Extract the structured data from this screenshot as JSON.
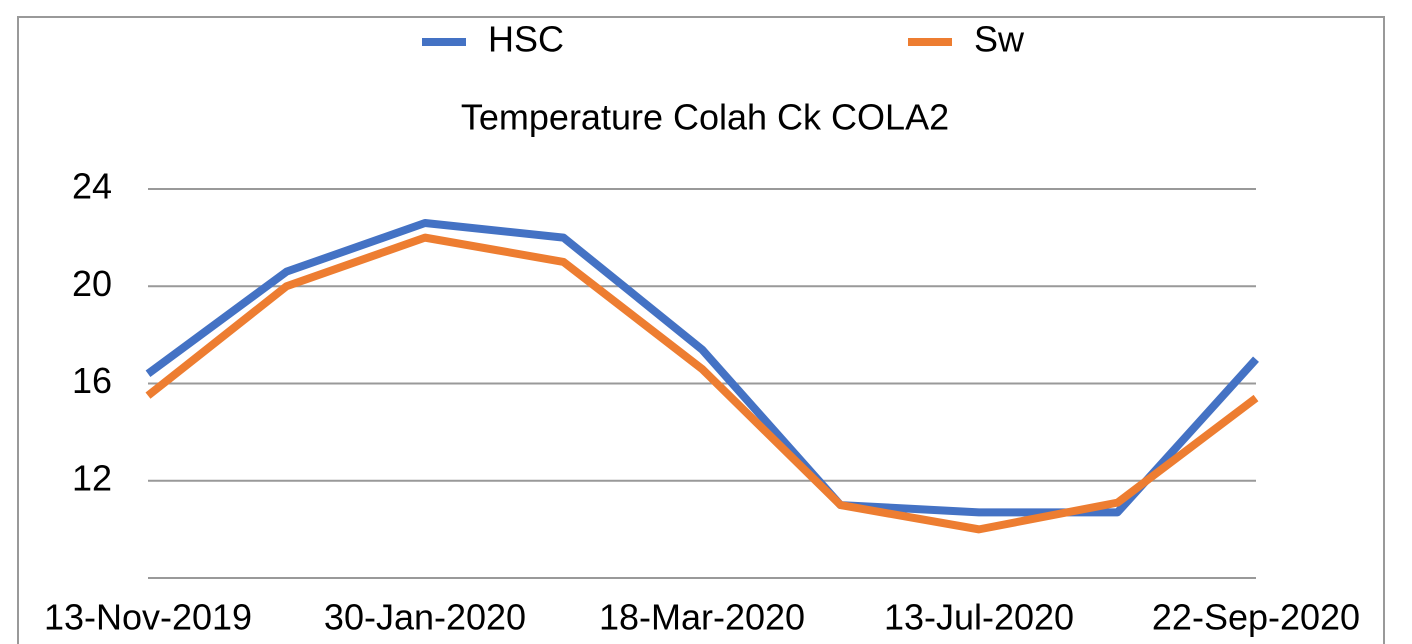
{
  "chart_data": {
    "type": "line",
    "title": "Temperature Colah Ck COLA2",
    "categories": [
      "13-Nov-2019",
      null,
      "30-Jan-2020",
      null,
      "18-Mar-2020",
      null,
      "13-Jul-2020",
      null,
      "22-Sep-2020"
    ],
    "series": [
      {
        "name": "HSC",
        "color": "#4472c4",
        "values": [
          16.4,
          20.6,
          22.6,
          22.0,
          17.4,
          11.0,
          10.7,
          10.7,
          17.0
        ]
      },
      {
        "name": "Sw",
        "color": "#ed7d31",
        "values": [
          15.5,
          20.0,
          22.0,
          21.0,
          16.6,
          11.0,
          10.0,
          11.1,
          15.4
        ]
      }
    ],
    "ylim": [
      8,
      24
    ],
    "yticks": [
      12,
      16,
      20,
      24
    ],
    "grid": true,
    "legend": "top"
  }
}
